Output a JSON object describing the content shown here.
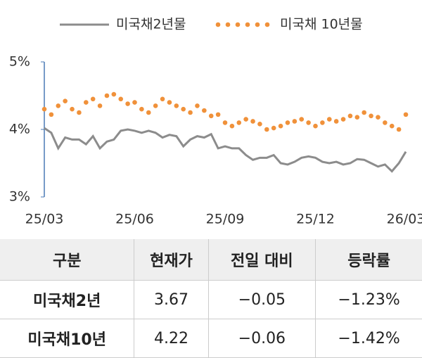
{
  "chart_data": {
    "type": "line",
    "categories": [
      "25/03",
      null,
      null,
      null,
      null,
      null,
      null,
      null,
      null,
      null,
      null,
      null,
      null,
      "25/06",
      null,
      null,
      null,
      null,
      null,
      null,
      null,
      null,
      null,
      null,
      null,
      null,
      "25/09",
      null,
      null,
      null,
      null,
      null,
      null,
      null,
      null,
      null,
      null,
      null,
      null,
      "25/12",
      null,
      null,
      null,
      null,
      null,
      null,
      null,
      null,
      null,
      null,
      null,
      null,
      "26/03"
    ],
    "series": [
      {
        "name": "미국채2년물",
        "color": "#8c8c8c",
        "style": "line",
        "values": [
          4.02,
          3.95,
          3.72,
          3.88,
          3.85,
          3.85,
          3.78,
          3.9,
          3.72,
          3.82,
          3.85,
          3.98,
          4.0,
          3.98,
          3.95,
          3.98,
          3.95,
          3.88,
          3.92,
          3.9,
          3.75,
          3.85,
          3.9,
          3.88,
          3.93,
          3.72,
          3.75,
          3.72,
          3.72,
          3.62,
          3.55,
          3.58,
          3.58,
          3.62,
          3.5,
          3.48,
          3.52,
          3.58,
          3.6,
          3.58,
          3.52,
          3.5,
          3.52,
          3.48,
          3.5,
          3.56,
          3.55,
          3.5,
          3.45,
          3.48,
          3.38,
          3.5,
          3.67
        ]
      },
      {
        "name": "미국채 10년물",
        "color": "#f0913a",
        "style": "dots",
        "values": [
          4.3,
          4.22,
          4.35,
          4.42,
          4.3,
          4.25,
          4.4,
          4.45,
          4.35,
          4.5,
          4.52,
          4.45,
          4.38,
          4.4,
          4.3,
          4.25,
          4.35,
          4.45,
          4.4,
          4.35,
          4.3,
          4.25,
          4.35,
          4.28,
          4.2,
          4.22,
          4.1,
          4.05,
          4.1,
          4.15,
          4.12,
          4.08,
          4.0,
          4.02,
          4.05,
          4.1,
          4.12,
          4.15,
          4.1,
          4.05,
          4.1,
          4.15,
          4.12,
          4.15,
          4.2,
          4.18,
          4.25,
          4.2,
          4.18,
          4.1,
          4.05,
          4.0,
          4.22
        ]
      }
    ],
    "ylim": [
      3,
      5
    ],
    "yticks": [
      {
        "value": 3,
        "label": "3%"
      },
      {
        "value": 4,
        "label": "4%"
      },
      {
        "value": 5,
        "label": "5%"
      }
    ]
  },
  "table": {
    "header": [
      "구분",
      "현재가",
      "전일 대비",
      "등락률"
    ],
    "rows": [
      [
        "미국채2년",
        "3.67",
        "−0.05",
        "−1.23%"
      ],
      [
        "미국채10년",
        "4.22",
        "−0.06",
        "−1.42%"
      ]
    ]
  }
}
